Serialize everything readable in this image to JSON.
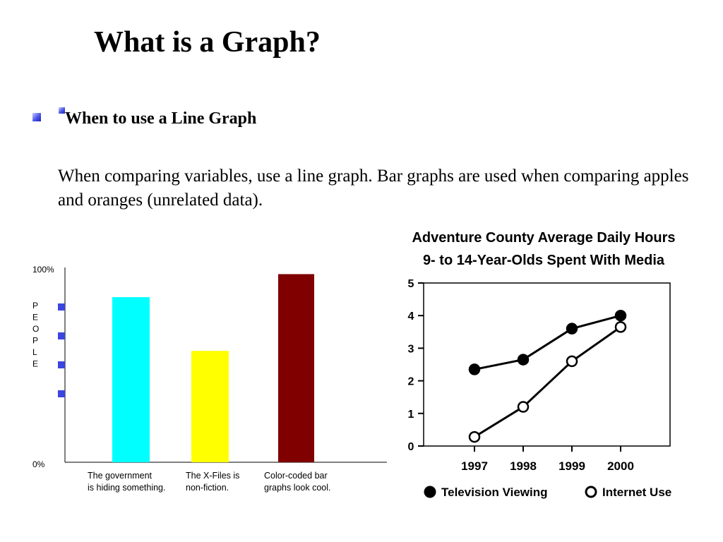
{
  "slide": {
    "title": "What is a Graph?",
    "subheading": "When to use a Line Graph",
    "body": "When comparing variables, use a line graph.  Bar graphs are used when comparing apples and oranges (unrelated data)."
  },
  "icons": {
    "bullet": "square-bullet-icon"
  },
  "colors": {
    "bullet": "#3b45e0",
    "bar_1": "#00ffff",
    "bar_2": "#ffff00",
    "bar_3": "#800000",
    "line_1": "#000000",
    "line_2": "#000000"
  },
  "chart_data": [
    {
      "type": "bar",
      "categories": [
        [
          "The government",
          "is hiding something."
        ],
        [
          "The X-Files is",
          "non-fiction."
        ],
        [
          "Color-coded bar",
          "graphs look cool."
        ]
      ],
      "values": [
        86,
        58,
        98
      ],
      "ylabel": "PEOPLE",
      "yticks": [
        "0%",
        "100%"
      ],
      "ylim": [
        0,
        100
      ],
      "grid": false,
      "legend": "none"
    },
    {
      "type": "line",
      "title": [
        "Adventure County Average Daily Hours",
        "9- to 14-Year-Olds Spent With Media"
      ],
      "x": [
        "1997",
        "1998",
        "1999",
        "2000"
      ],
      "yticks": [
        "0",
        "1",
        "2",
        "3",
        "4",
        "5"
      ],
      "ylim": [
        0,
        5
      ],
      "series": [
        {
          "name": "Television Viewing",
          "marker": "filled-circle",
          "values": [
            2.35,
            2.65,
            3.6,
            4.0
          ]
        },
        {
          "name": "Internet Use",
          "marker": "open-circle",
          "values": [
            0.28,
            1.2,
            2.6,
            3.65
          ]
        }
      ],
      "grid": false,
      "legend": "bottom"
    }
  ]
}
